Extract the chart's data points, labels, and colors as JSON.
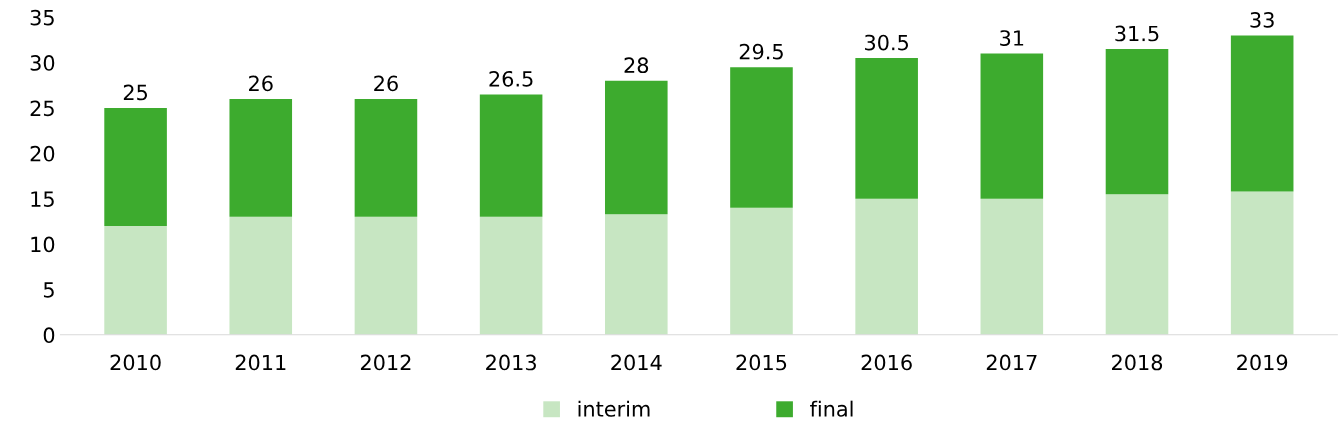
{
  "chart_data": {
    "type": "bar",
    "stacked": true,
    "categories": [
      "2010",
      "2011",
      "2012",
      "2013",
      "2014",
      "2015",
      "2016",
      "2017",
      "2018",
      "2019"
    ],
    "series": [
      {
        "name": "interim",
        "color": "#c7e6c2",
        "values": [
          12,
          13,
          13,
          13,
          13.3,
          14,
          15,
          15,
          15.5,
          15.8
        ]
      },
      {
        "name": "final",
        "color": "#3dab2e",
        "values": [
          13,
          13,
          13,
          13.5,
          14.7,
          15.5,
          15.5,
          16,
          16,
          17.2
        ]
      }
    ],
    "totals": [
      "25",
      "26",
      "26",
      "26.5",
      "28",
      "29.5",
      "30.5",
      "31",
      "31.5",
      "33"
    ],
    "ylim": [
      0,
      35
    ],
    "yticks": [
      0,
      5,
      10,
      15,
      20,
      25,
      30,
      35
    ],
    "grid": false,
    "legend": "bottom"
  }
}
